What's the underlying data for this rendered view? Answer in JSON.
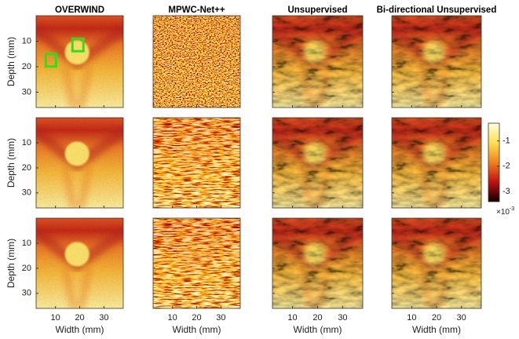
{
  "columns": [
    "OVERWIND",
    "MPWC-Net++",
    "Unsupervised",
    "Bi-directional Unsupervised"
  ],
  "y_label": "Depth (mm)",
  "x_label": "Width (mm)",
  "xlim": [
    2,
    38
  ],
  "xticks": [
    10,
    20,
    30
  ],
  "ylim": [
    0,
    36
  ],
  "yticks": [
    10,
    20,
    30
  ],
  "colorbar": {
    "lim": [
      -3.4,
      -0.3
    ],
    "ticks": [
      -1,
      -2,
      -3
    ],
    "multiplier": {
      "base": "×10",
      "exponent": "-3"
    }
  }
}
